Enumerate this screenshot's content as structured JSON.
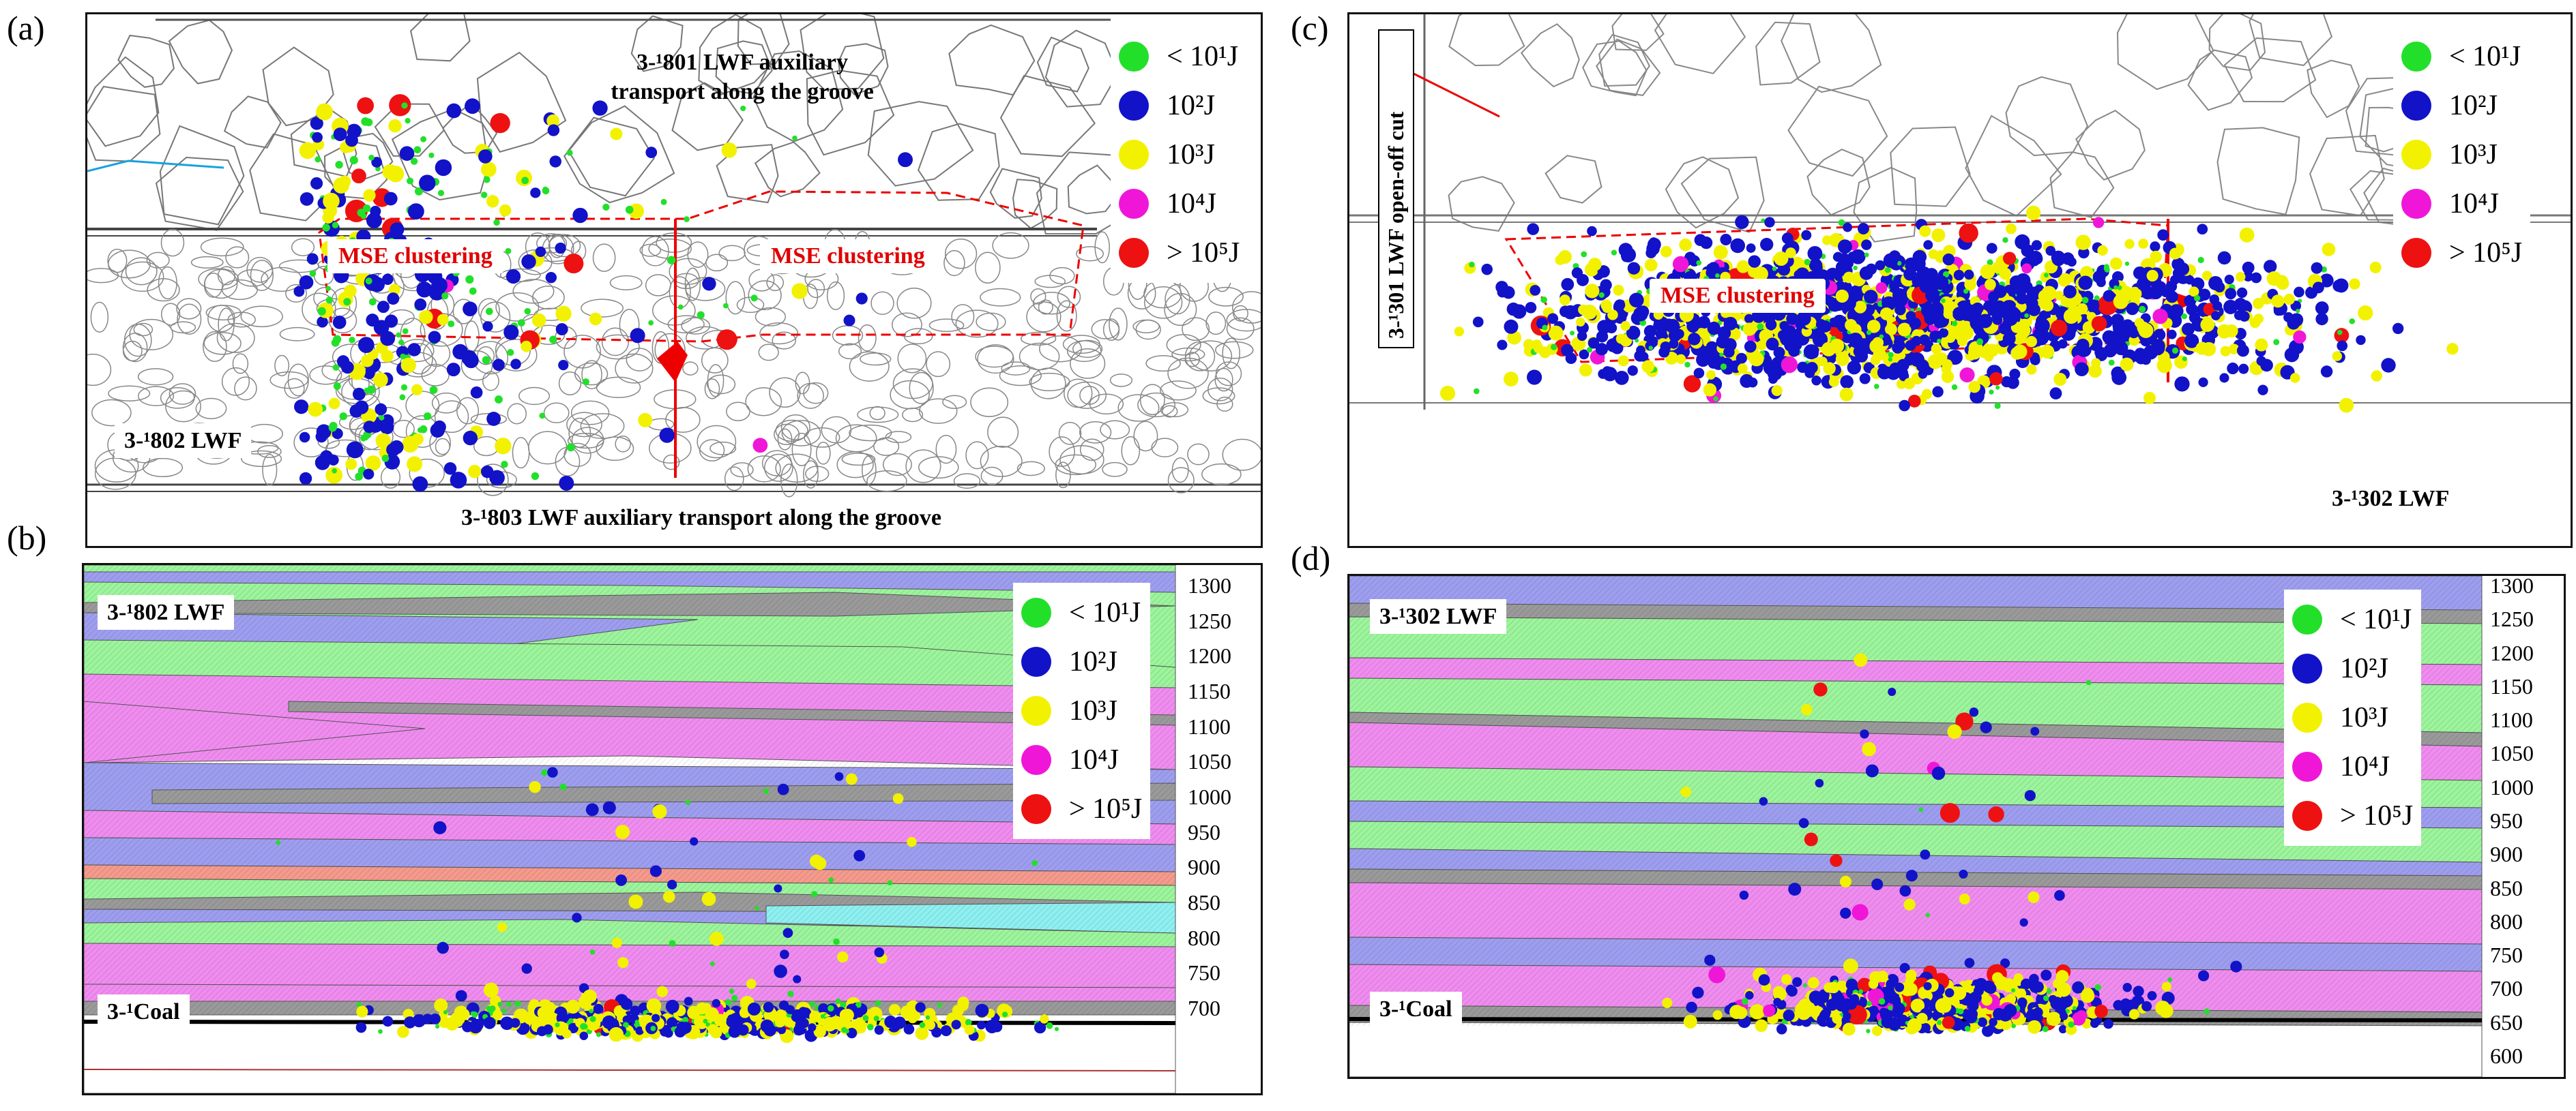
{
  "panels": {
    "a": {
      "label": "(a)",
      "title_top_line1": "3-¹801 LWF auxiliary",
      "title_top_line2": "transport along the groove",
      "mse_left": "MSE clustering",
      "mse_right": "MSE clustering",
      "lwf_label": "3-¹802 LWF",
      "bottom_label": "3-¹803 LWF auxiliary transport along the groove"
    },
    "b": {
      "label": "(b)",
      "lwf_label": "3-¹802 LWF",
      "coal_label": "3-¹Coal"
    },
    "c": {
      "label": "(c)",
      "cut_label": "3-¹301 LWF open-off cut",
      "mse": "MSE clustering",
      "lwf_label": "3-¹302 LWF"
    },
    "d": {
      "label": "(d)",
      "lwf_label": "3-¹302 LWF",
      "coal_label": "3-¹Coal"
    }
  },
  "legend": [
    {
      "label": "< 10¹J",
      "color": "#22e02a",
      "energy_class": "lt_10_1"
    },
    {
      "label": "10²J",
      "color": "#1212c8",
      "energy_class": "10_2"
    },
    {
      "label": "10³J",
      "color": "#f2f200",
      "energy_class": "10_3"
    },
    {
      "label": "10⁴J",
      "color": "#f016d8",
      "energy_class": "10_4"
    },
    {
      "label": "> 10⁵J",
      "color": "#ee1111",
      "energy_class": "gt_10_5"
    }
  ],
  "axis_b": {
    "ticks": [
      "1300",
      "1250",
      "1200",
      "1150",
      "1100",
      "1050",
      "1000",
      "950",
      "900",
      "850",
      "800",
      "750",
      "700"
    ]
  },
  "axis_d": {
    "ticks": [
      "1300",
      "1250",
      "1200",
      "1150",
      "1100",
      "1050",
      "1000",
      "950",
      "900",
      "850",
      "800",
      "750",
      "700",
      "650",
      "600"
    ]
  },
  "strata_colors": {
    "green": "#9cf59c",
    "blue": "#9e9ef0",
    "pink": "#f08cf0",
    "gray": "#9a9a9a",
    "cyan": "#8ef0f0",
    "salmon": "#f59a8c",
    "white": "#ffffff"
  }
}
